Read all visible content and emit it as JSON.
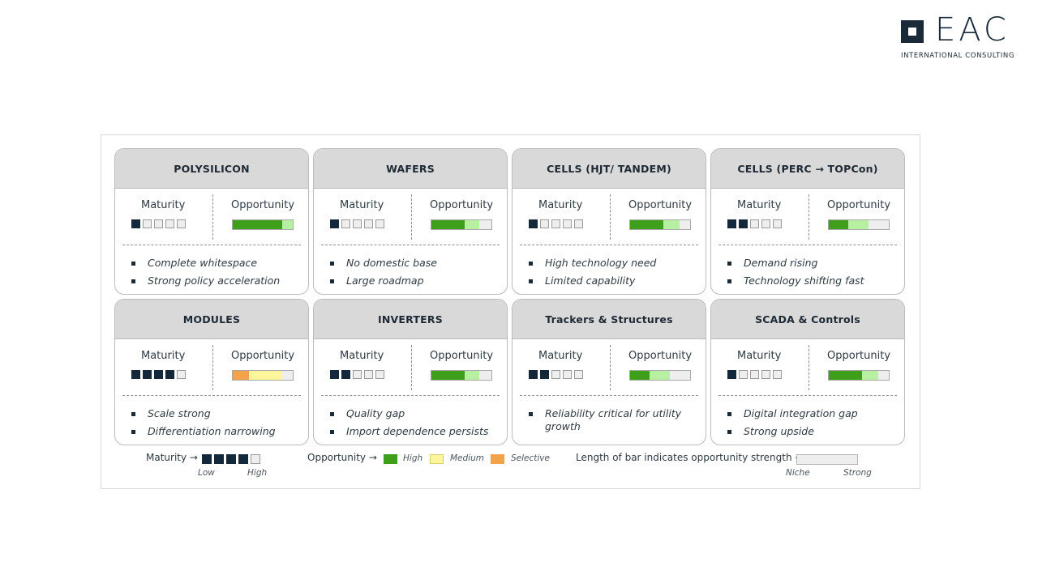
{
  "logo": {
    "word": "EAC",
    "tagline": "INTERNATIONAL CONSULTING"
  },
  "colors": {
    "high": "#3f9e1a",
    "medium": "#fff59a",
    "selective": "#f2a24a",
    "light_green": "#b7f0a0",
    "maturity_on": "#13283a"
  },
  "labels": {
    "maturity": "Maturity",
    "opportunity": "Opportunity"
  },
  "cards": [
    {
      "title": "POLYSILICON",
      "maturity": 1,
      "opportunity": [
        {
          "level": "high",
          "share": 0.82
        },
        {
          "level": "light",
          "share": 0.18
        }
      ],
      "bullets": [
        "Complete whitespace",
        "Strong policy acceleration"
      ]
    },
    {
      "title": "WAFERS",
      "maturity": 1,
      "opportunity": [
        {
          "level": "high",
          "share": 0.55
        },
        {
          "level": "light",
          "share": 0.25
        }
      ],
      "bullets": [
        "No domestic base",
        "Large roadmap"
      ]
    },
    {
      "title": "CELLS (HJT/ TANDEM)",
      "maturity": 1,
      "opportunity": [
        {
          "level": "high",
          "share": 0.55
        },
        {
          "level": "light",
          "share": 0.27
        }
      ],
      "bullets": [
        "High technology need",
        "Limited capability"
      ]
    },
    {
      "title": "CELLS (PERC → TOPCon)",
      "maturity": 2,
      "opportunity": [
        {
          "level": "high",
          "share": 0.33
        },
        {
          "level": "light",
          "share": 0.33
        }
      ],
      "bullets": [
        "Demand rising",
        "Technology shifting fast"
      ]
    },
    {
      "title": "MODULES",
      "maturity": 4,
      "opportunity": [
        {
          "level": "selective",
          "share": 0.27
        },
        {
          "level": "medium",
          "share": 0.55
        }
      ],
      "bullets": [
        "Scale strong",
        "Differentiation narrowing"
      ]
    },
    {
      "title": "INVERTERS",
      "maturity": 2,
      "opportunity": [
        {
          "level": "high",
          "share": 0.55
        },
        {
          "level": "light",
          "share": 0.25
        }
      ],
      "bullets": [
        "Quality gap",
        "Import dependence persists"
      ]
    },
    {
      "title": "Trackers & Structures",
      "maturity": 2,
      "opportunity": [
        {
          "level": "high",
          "share": 0.33
        },
        {
          "level": "light",
          "share": 0.33
        }
      ],
      "bullets": [
        "Reliability critical for utility growth"
      ]
    },
    {
      "title": "SCADA & Controls",
      "maturity": 1,
      "opportunity": [
        {
          "level": "high",
          "share": 0.55
        },
        {
          "level": "light",
          "share": 0.27
        }
      ],
      "bullets": [
        "Digital integration gap",
        "Strong upside"
      ]
    }
  ],
  "legend": {
    "maturity_label": "Maturity →",
    "maturity_low": "Low",
    "maturity_high": "High",
    "opportunity_label": "Opportunity →",
    "high": "High",
    "medium": "Medium",
    "selective": "Selective",
    "length_label": "Length of bar indicates opportunity strength →",
    "niche": "Niche",
    "strong": "Strong"
  }
}
